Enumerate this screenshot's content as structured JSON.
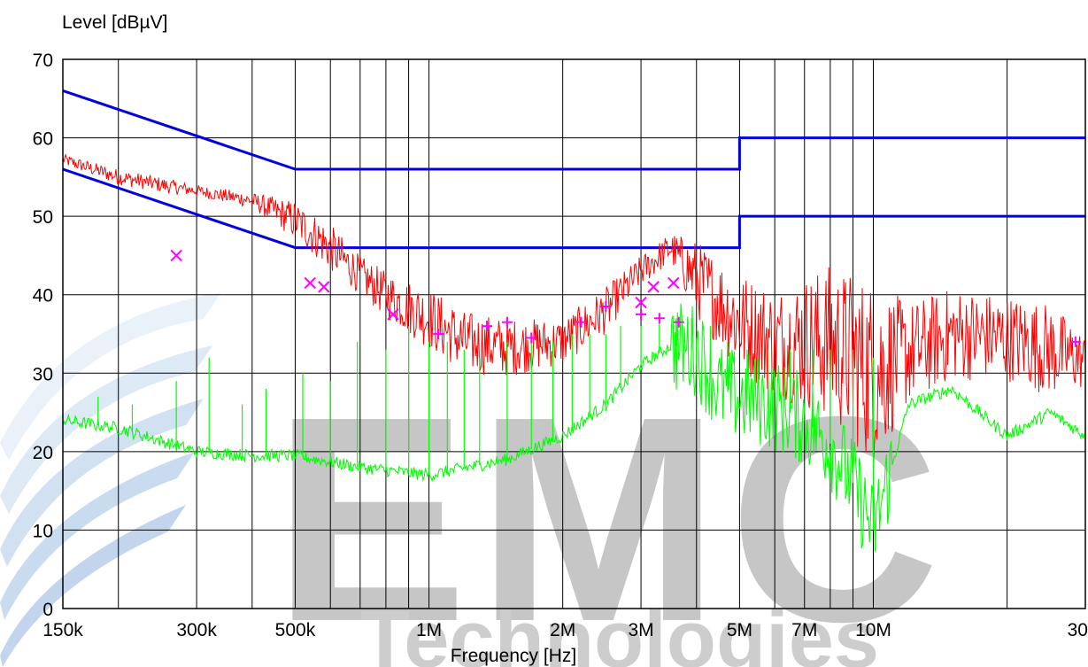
{
  "chart_data": {
    "type": "line",
    "title": "",
    "xlabel": "Frequency [Hz]",
    "ylabel": "Level [dBµV]",
    "x_scale": "log",
    "xlim": [
      150000,
      30000000
    ],
    "ylim": [
      0,
      70
    ],
    "grid": true,
    "x_ticks": [
      {
        "value": 150000,
        "label": "150k"
      },
      {
        "value": 300000,
        "label": "300k"
      },
      {
        "value": 500000,
        "label": "500k"
      },
      {
        "value": 1000000,
        "label": "1M"
      },
      {
        "value": 2000000,
        "label": "2M"
      },
      {
        "value": 3000000,
        "label": "3M"
      },
      {
        "value": 5000000,
        "label": "5M"
      },
      {
        "value": 7000000,
        "label": "7M"
      },
      {
        "value": 10000000,
        "label": "10M"
      },
      {
        "value": 30000000,
        "label": "30M"
      }
    ],
    "y_ticks": [
      0,
      10,
      20,
      30,
      40,
      50,
      60,
      70
    ],
    "series": [
      {
        "key": "limit_qp",
        "color": "#0000e0",
        "x": [
          150000,
          500000,
          500000,
          5000000,
          5000000,
          30000000
        ],
        "y": [
          66,
          56,
          56,
          56,
          60,
          60
        ]
      },
      {
        "key": "limit_avg",
        "color": "#0000e0",
        "x": [
          150000,
          500000,
          500000,
          5000000,
          5000000,
          30000000
        ],
        "y": [
          56,
          46,
          46,
          46,
          50,
          50
        ]
      },
      {
        "key": "peak_trace",
        "color": "#ff0000",
        "x": [
          150000,
          200000,
          250000,
          300000,
          400000,
          500000,
          600000,
          700000,
          800000,
          1000000,
          1200000,
          1500000,
          2000000,
          2500000,
          3000000,
          3500000,
          4000000,
          5000000,
          6000000,
          8000000,
          10000000,
          12000000,
          15000000,
          20000000,
          25000000,
          30000000
        ],
        "y": [
          57.5,
          55,
          54,
          53.5,
          52,
          50,
          45,
          42,
          39,
          36,
          32,
          31,
          33,
          37,
          43,
          46.5,
          44,
          37,
          35,
          33,
          26,
          33,
          35,
          34,
          30,
          29
        ],
        "envelope": [
          150000,
          200000,
          250000,
          300000,
          400000,
          500000,
          600000,
          700000,
          800000,
          1000000,
          1200000,
          1500000,
          2000000,
          2500000,
          3000000,
          3500000,
          4000000,
          5000000,
          6000000,
          8000000,
          10000000,
          12000000,
          15000000,
          20000000,
          25000000,
          30000000
        ],
        "envelope_low": [
          56.5,
          54,
          53,
          52.5,
          51,
          47,
          43,
          40,
          37,
          33,
          30,
          29.5,
          31,
          35,
          41,
          44,
          37,
          30,
          27,
          24,
          18,
          26,
          29,
          29,
          27,
          28
        ],
        "envelope_high": [
          58,
          56,
          55,
          54,
          53,
          52,
          49,
          45,
          43,
          41,
          38,
          37,
          37,
          41,
          45,
          48,
          47,
          43,
          41,
          44,
          42,
          39,
          41,
          40,
          39,
          35
        ]
      },
      {
        "key": "average_trace",
        "color": "#00ff00",
        "x": [
          150000,
          200000,
          300000,
          400000,
          500000,
          700000,
          1000000,
          1500000,
          2000000,
          2500000,
          3000000,
          3500000,
          4000000,
          4500000,
          5000000,
          6000000,
          7000000,
          8000000,
          9000000,
          10000000,
          11000000,
          12000000,
          15000000,
          20000000,
          25000000,
          30000000
        ],
        "y": [
          24,
          23,
          20,
          19.5,
          19.5,
          18,
          17,
          19,
          22,
          26,
          31,
          33.5,
          33,
          28,
          27,
          26,
          24,
          21,
          16,
          10,
          18,
          26,
          28,
          22,
          25,
          22
        ],
        "spikes_x": [
          180000,
          215000,
          270000,
          320000,
          380000,
          430000,
          520000,
          600000,
          690000,
          800000,
          900000,
          1000000,
          1100000,
          1200000,
          1300000,
          1500000,
          1700000,
          1900000,
          2100000,
          2300000,
          2500000,
          2700000,
          3000000,
          3300000,
          3600000,
          3900000,
          4300000,
          4700000,
          5200000,
          5800000,
          6500000,
          7300000,
          8000000,
          9000000,
          10000000
        ],
        "spikes_y": [
          27,
          26,
          29,
          32,
          26,
          28,
          30,
          29,
          34,
          33,
          36,
          34,
          34,
          33,
          32,
          34,
          34,
          34,
          35,
          35,
          35,
          36,
          36,
          37,
          37,
          37,
          36,
          34,
          33,
          33,
          33,
          33,
          33,
          33,
          32
        ]
      },
      {
        "key": "qp_markers",
        "color": "#ff00ff",
        "marker": "x",
        "x": [
          270000,
          540000,
          580000,
          830000,
          3000000,
          3200000,
          3550000
        ],
        "y": [
          45,
          41.5,
          41,
          37.5,
          39,
          41,
          41.5
        ]
      },
      {
        "key": "avg_markers",
        "color": "#ff00ff",
        "marker": "+",
        "x": [
          1050000,
          1350000,
          1500000,
          1700000,
          2200000,
          2500000,
          3000000,
          3300000,
          3650000,
          28500000
        ],
        "y": [
          35,
          36,
          36.5,
          34.5,
          36.5,
          38.5,
          37.5,
          37,
          36.5,
          34
        ]
      }
    ]
  },
  "watermark": {
    "text_main": "EMC",
    "text_sub": "Technologies",
    "color": "#b0b0b0"
  }
}
